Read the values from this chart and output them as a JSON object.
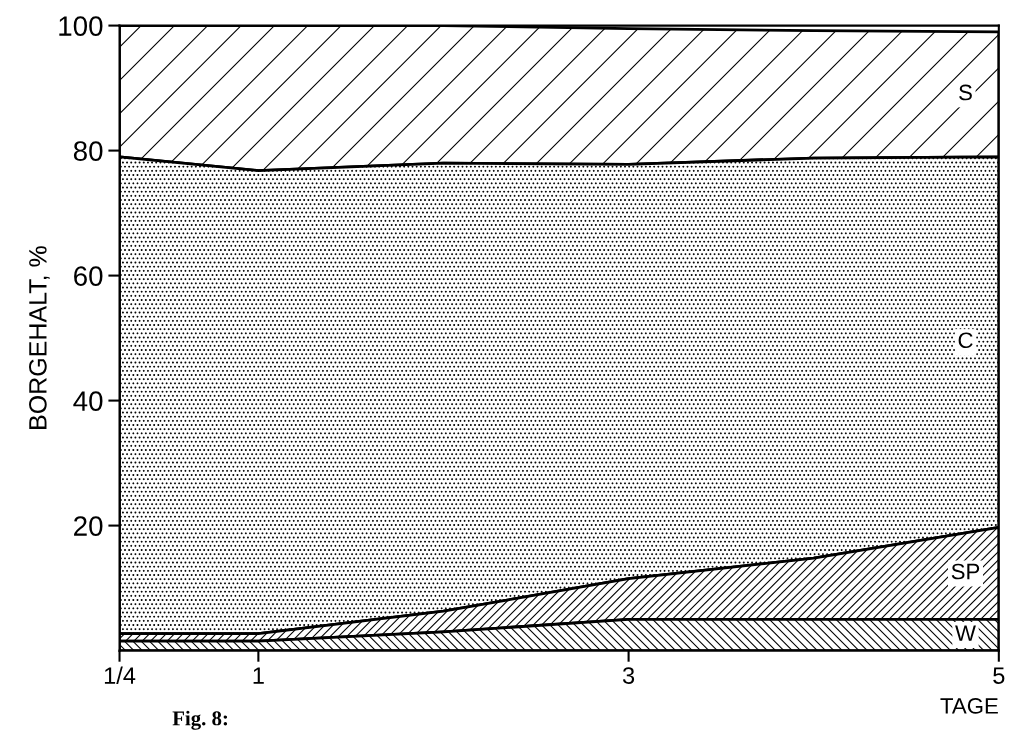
{
  "chart_data": {
    "type": "area",
    "stacked": true,
    "xlabel": "TAGE",
    "ylabel": "BORGEHALT, %",
    "x": [
      0.25,
      1,
      2,
      3,
      4,
      5
    ],
    "xlim": [
      0.25,
      5
    ],
    "xticks": [
      {
        "value": 0.25,
        "label": "1/4"
      },
      1,
      3,
      5
    ],
    "ylim": [
      0,
      100
    ],
    "yticks": [
      20,
      40,
      60,
      80,
      100
    ],
    "grid": false,
    "legend": false,
    "series": [
      {
        "name": "W",
        "color": "#000000",
        "values": [
          1.5,
          1.5,
          3,
          5,
          5,
          5
        ]
      },
      {
        "name": "SP",
        "color": "#000000",
        "values": [
          1.2,
          1.2,
          3.3,
          6.5,
          9.8,
          14.7
        ]
      },
      {
        "name": "C",
        "color": "#000000",
        "values": [
          76.3,
          74.1,
          71.7,
          66.3,
          64,
          59.3
        ]
      },
      {
        "name": "S",
        "color": "#000000",
        "values": [
          21,
          23.2,
          22,
          21.7,
          20.4,
          20
        ]
      }
    ],
    "annotations": [
      "Fig. 8:"
    ]
  }
}
